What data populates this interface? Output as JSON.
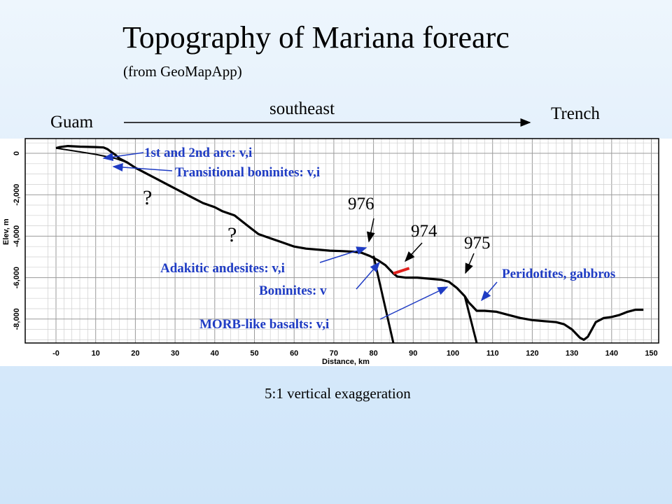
{
  "header": {
    "title": "Topography of Mariana forearc",
    "subtitle": "(from GeoMapApp)"
  },
  "direction": {
    "start_label": "Guam",
    "end_label": "Trench",
    "arrow_label": "southeast"
  },
  "caption": "5:1 vertical exaggeration",
  "chart_data": {
    "type": "line",
    "xlabel": "Distance, km",
    "ylabel": "Elev, m",
    "xlim": [
      -3,
      153
    ],
    "ylim": [
      -9500,
      500
    ],
    "x_ticks": [
      0,
      10,
      20,
      30,
      40,
      50,
      60,
      70,
      80,
      90,
      100,
      110,
      120,
      130,
      140,
      150
    ],
    "x_tick_labels": [
      "-0",
      "10",
      "20",
      "30",
      "40",
      "50",
      "60",
      "70",
      "80",
      "90",
      "100",
      "110",
      "120",
      "130",
      "140",
      "150"
    ],
    "y_ticks": [
      0,
      -2000,
      -4000,
      -6000,
      -8000
    ],
    "y_tick_labels": [
      "0",
      "-2,000",
      "-4,000",
      "-6,000",
      "-8,000"
    ],
    "grid": true,
    "series": [
      {
        "values_xy": [
          [
            0,
            250
          ],
          [
            1,
            300
          ],
          [
            3,
            350
          ],
          [
            6,
            320
          ],
          [
            10,
            300
          ],
          [
            12,
            280
          ],
          [
            13,
            200
          ],
          [
            14,
            50
          ],
          [
            15,
            -80
          ],
          [
            16,
            -250
          ],
          [
            18,
            -450
          ],
          [
            20,
            -700
          ],
          [
            22,
            -900
          ],
          [
            25,
            -1200
          ],
          [
            28,
            -1500
          ],
          [
            31,
            -1800
          ],
          [
            34,
            -2100
          ],
          [
            37,
            -2400
          ],
          [
            40,
            -2600
          ],
          [
            42,
            -2800
          ],
          [
            45,
            -3000
          ],
          [
            47,
            -3300
          ],
          [
            49,
            -3600
          ],
          [
            51,
            -3900
          ],
          [
            54,
            -4100
          ],
          [
            57,
            -4300
          ],
          [
            60,
            -4500
          ],
          [
            63,
            -4600
          ],
          [
            66,
            -4650
          ],
          [
            69,
            -4700
          ],
          [
            72,
            -4720
          ],
          [
            75,
            -4750
          ],
          [
            77,
            -4800
          ],
          [
            79,
            -4950
          ],
          [
            81,
            -5150
          ],
          [
            83,
            -5400
          ],
          [
            84,
            -5600
          ],
          [
            85,
            -5800
          ],
          [
            86,
            -5950
          ],
          [
            88,
            -6000
          ],
          [
            91,
            -6000
          ],
          [
            94,
            -6050
          ],
          [
            97,
            -6100
          ],
          [
            99,
            -6200
          ],
          [
            101,
            -6500
          ],
          [
            103,
            -6900
          ],
          [
            104,
            -7200
          ],
          [
            105,
            -7400
          ],
          [
            106,
            -7600
          ],
          [
            108,
            -7600
          ],
          [
            111,
            -7650
          ],
          [
            114,
            -7800
          ],
          [
            117,
            -7950
          ],
          [
            120,
            -8050
          ],
          [
            123,
            -8100
          ],
          [
            126,
            -8150
          ],
          [
            128,
            -8250
          ],
          [
            130,
            -8500
          ],
          [
            132,
            -8900
          ],
          [
            133,
            -9000
          ],
          [
            134,
            -8850
          ],
          [
            135,
            -8500
          ],
          [
            136,
            -8150
          ],
          [
            138,
            -7950
          ],
          [
            140,
            -7900
          ],
          [
            142,
            -7800
          ],
          [
            144,
            -7650
          ],
          [
            146,
            -7550
          ],
          [
            148,
            -7550
          ]
        ]
      },
      {
        "values_xy": [
          [
            0,
            250
          ],
          [
            5,
            100
          ],
          [
            10,
            -50
          ],
          [
            15,
            -250
          ],
          [
            18,
            -450
          ]
        ]
      }
    ],
    "annotations": [
      {
        "text": "1st and 2nd arc: v,i",
        "points_to": [
          14,
          100
        ]
      },
      {
        "text": "Transitional boninites: v,i",
        "points_to": [
          13,
          -400
        ]
      },
      {
        "text": "976",
        "points_to": [
          78,
          -4800
        ]
      },
      {
        "text": "974",
        "points_to": [
          88,
          -5900
        ]
      },
      {
        "text": "975",
        "points_to": [
          104,
          -6000
        ]
      },
      {
        "text": "Adakitic andesites: v,i",
        "points_to": [
          79,
          -4950
        ]
      },
      {
        "text": "Boninites: v",
        "points_to": [
          84,
          -5600
        ]
      },
      {
        "text": "MORB-like basalts: v,i",
        "points_to": [
          100,
          -6200
        ]
      },
      {
        "text": "Peridotites, gabbros",
        "points_to": [
          108,
          -7600
        ]
      },
      {
        "text": "?",
        "points_to": [
          20,
          -2000
        ]
      },
      {
        "text": "?",
        "points_to": [
          45,
          -4000
        ]
      }
    ],
    "boundary_lines": [
      {
        "from": [
          80,
          -4950
        ],
        "to": [
          85,
          -9500
        ]
      },
      {
        "from": [
          103,
          -6900
        ],
        "to": [
          106,
          -9500
        ]
      }
    ],
    "red_marker": {
      "from": [
        85,
        -5800
      ],
      "to": [
        89,
        -5550
      ]
    }
  }
}
